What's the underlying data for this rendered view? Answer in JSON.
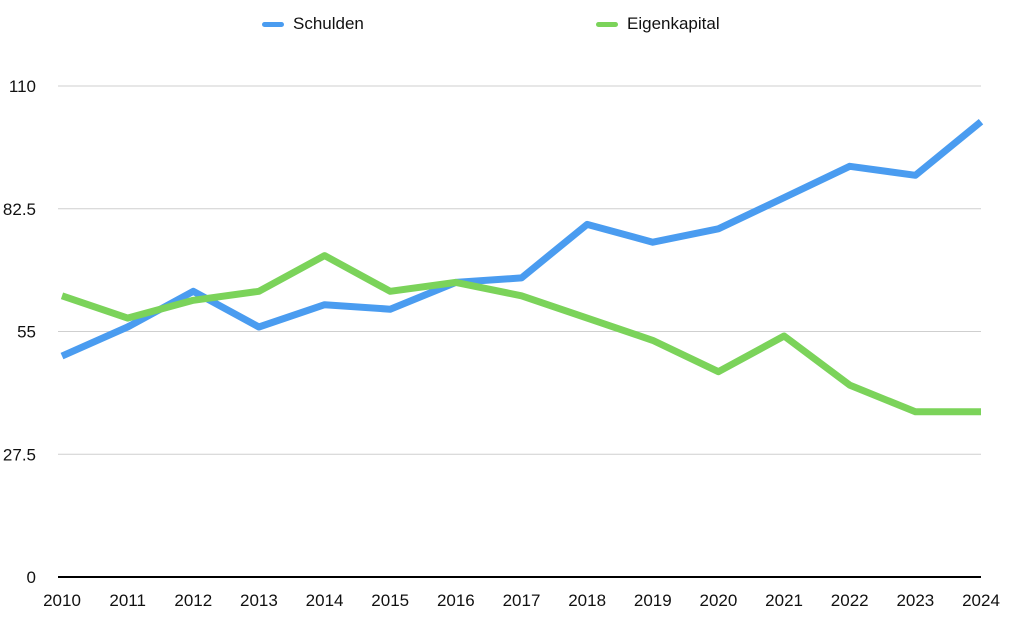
{
  "chart_data": {
    "type": "line",
    "categories": [
      "2010",
      "2011",
      "2012",
      "2013",
      "2014",
      "2015",
      "2016",
      "2017",
      "2018",
      "2019",
      "2020",
      "2021",
      "2022",
      "2023",
      "2024"
    ],
    "series": [
      {
        "name": "Schulden",
        "color": "#4a9cf0",
        "values": [
          49.5,
          56,
          64,
          56,
          61,
          60,
          66,
          67,
          79,
          75,
          78,
          85,
          92,
          90,
          102
        ]
      },
      {
        "name": "Eigenkapital",
        "color": "#7bd35a",
        "values": [
          63,
          58,
          62,
          64,
          72,
          64,
          66,
          63,
          58,
          53,
          46,
          54,
          43,
          37,
          37
        ]
      }
    ],
    "y_ticks": [
      "0",
      "27.5",
      "55",
      "82.5",
      "110"
    ],
    "ylim": [
      0,
      110
    ],
    "title": "",
    "xlabel": "",
    "ylabel": "",
    "grid": true,
    "legend_position": "top"
  }
}
